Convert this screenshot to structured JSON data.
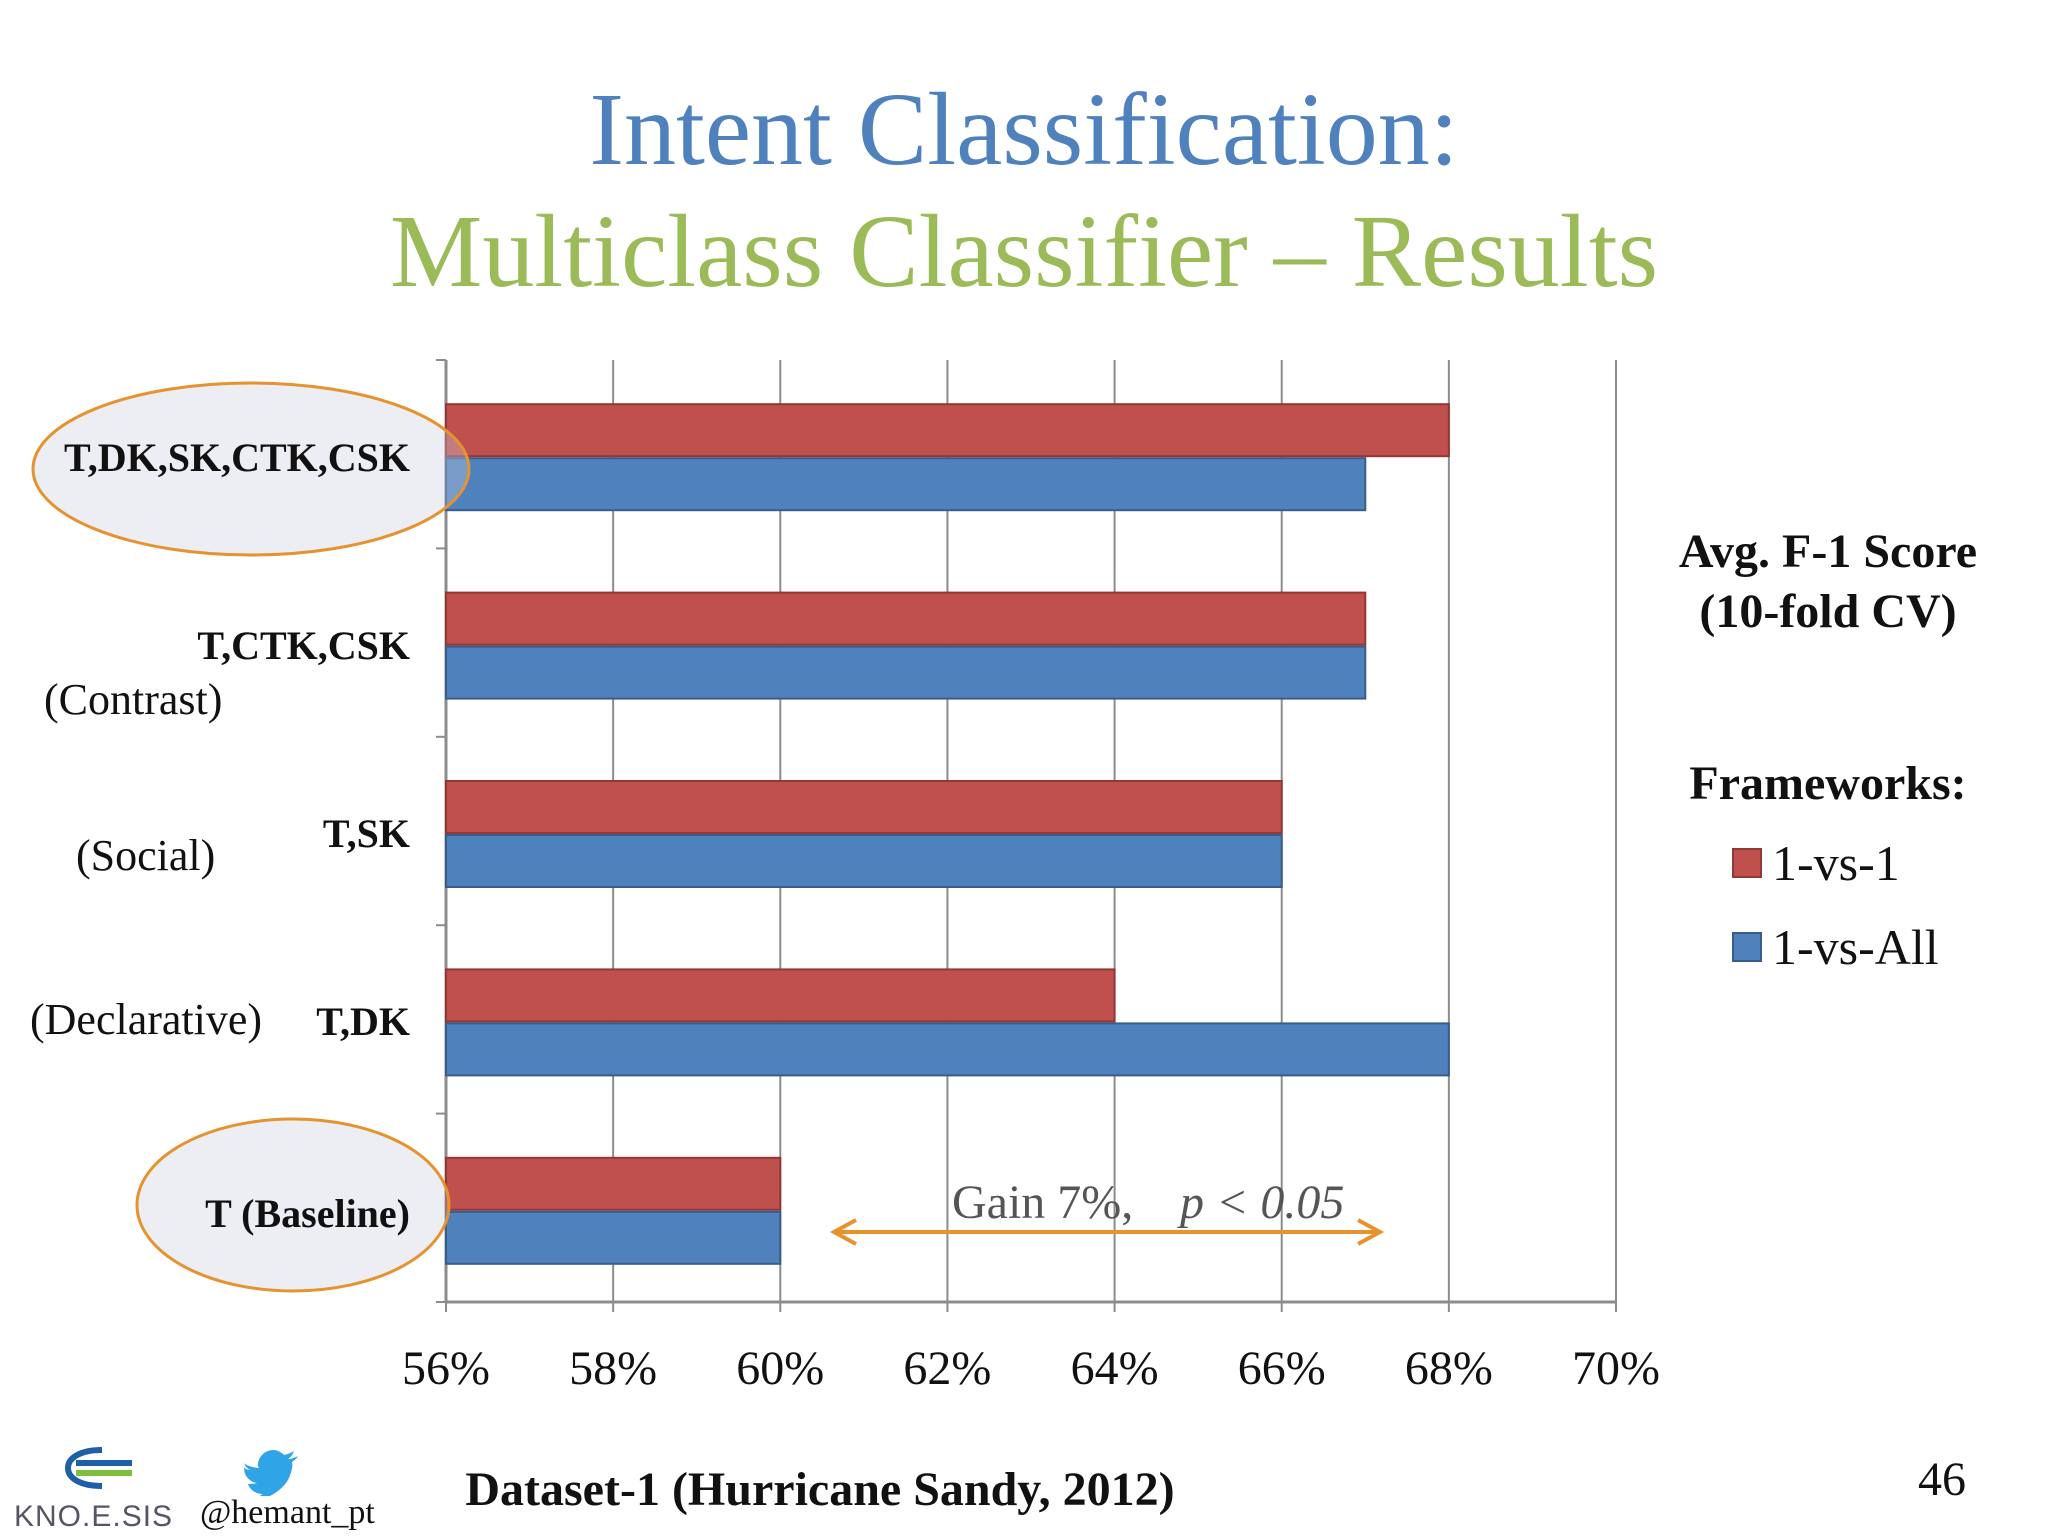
{
  "slide": {
    "title_line1": "Intent Classification:",
    "title_line2": "Multiclass Classifier – Results",
    "side_label_line1": "Avg. F-1 Score",
    "side_label_line2": "(10-fold CV)",
    "legend_title": "Frameworks:",
    "dataset_label": "Dataset-1 (Hurricane Sandy, 2012)",
    "page_number": "46",
    "twitter_handle": "@hemant_pt",
    "logo_text": "KNO.E.SIS",
    "annotation": "Gain 7%,",
    "annotation_p": "p < 0.05",
    "category_notes": [
      "(Contrast)",
      "(Social)",
      "(Declarative)"
    ],
    "colors": {
      "title_blue": "#4f81bd",
      "title_green": "#9bbb59",
      "series_1vs1": "#c0504d",
      "series_1vsAll": "#4f81bd",
      "highlight": "#e6922e"
    }
  },
  "chart_data": {
    "type": "bar",
    "orientation": "horizontal",
    "categories": [
      "T,DK,SK,CTK,CSK",
      "T,CTK,CSK",
      "T,SK",
      "T,DK",
      "T (Baseline)"
    ],
    "series": [
      {
        "name": "1-vs-1",
        "values": [
          68,
          67,
          66,
          64,
          60
        ]
      },
      {
        "name": "1-vs-All",
        "values": [
          67,
          67,
          66,
          68,
          60
        ]
      }
    ],
    "xlim": [
      56,
      70
    ],
    "xticks": [
      "56%",
      "58%",
      "60%",
      "62%",
      "64%",
      "66%",
      "68%",
      "70%"
    ],
    "unit": "%",
    "grid": true,
    "legend_position": "right"
  }
}
